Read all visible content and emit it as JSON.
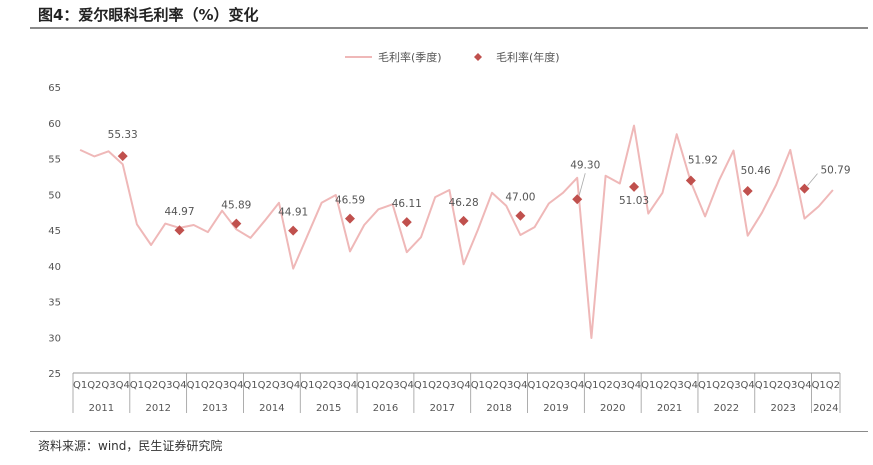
{
  "title": "图4：爱尔眼科毛利率（%）变化",
  "source": "资料来源：wind，民生证券研究院",
  "colors": {
    "line": "#efb8b8",
    "marker": "#c0504d",
    "axis": "#999999",
    "text": "#555555"
  },
  "chart_data": {
    "type": "line",
    "legend_position": "top-center",
    "grid": false,
    "ylim": [
      25,
      65
    ],
    "yticks": [
      25,
      30,
      35,
      40,
      45,
      50,
      55,
      60,
      65
    ],
    "quarters": [
      "Q1",
      "Q2",
      "Q3",
      "Q4",
      "Q1",
      "Q2",
      "Q3",
      "Q4",
      "Q1",
      "Q2",
      "Q3",
      "Q4",
      "Q1",
      "Q2",
      "Q3",
      "Q4",
      "Q1",
      "Q2",
      "Q3",
      "Q4",
      "Q1",
      "Q2",
      "Q3",
      "Q4",
      "Q1",
      "Q2",
      "Q3",
      "Q4",
      "Q1",
      "Q2",
      "Q3",
      "Q4",
      "Q1",
      "Q2",
      "Q3",
      "Q4",
      "Q1",
      "Q2",
      "Q3",
      "Q4",
      "Q1",
      "Q2",
      "Q3",
      "Q4",
      "Q1",
      "Q2",
      "Q3",
      "Q4",
      "Q1",
      "Q2",
      "Q3",
      "Q4",
      "Q1",
      "Q2"
    ],
    "years": [
      "2011",
      "2012",
      "2013",
      "2014",
      "2015",
      "2016",
      "2017",
      "2018",
      "2019",
      "2020",
      "2021",
      "2022",
      "2023",
      "2024"
    ],
    "series": [
      {
        "name": "毛利率(季度)",
        "values": [
          56.2,
          55.3,
          56.0,
          54.2,
          45.8,
          42.9,
          45.9,
          45.3,
          45.7,
          44.7,
          47.7,
          45.1,
          43.9,
          46.3,
          48.8,
          39.6,
          44.2,
          48.8,
          49.9,
          42.0,
          45.7,
          47.9,
          48.6,
          41.9,
          44.0,
          49.6,
          50.6,
          40.2,
          45.0,
          50.2,
          48.4,
          44.3,
          45.4,
          48.7,
          50.2,
          52.3,
          29.9,
          52.6,
          51.5,
          59.6,
          47.3,
          50.2,
          58.4,
          51.7,
          46.9,
          52.0,
          56.1,
          44.2,
          47.4,
          51.3,
          56.2,
          46.6,
          48.3,
          50.6
        ]
      },
      {
        "name": "毛利率(年度)",
        "points": [
          {
            "year": "2011",
            "value": 55.33,
            "label": "55.33"
          },
          {
            "year": "2012",
            "value": 44.97,
            "label": "44.97"
          },
          {
            "year": "2013",
            "value": 45.89,
            "label": "45.89"
          },
          {
            "year": "2014",
            "value": 44.91,
            "label": "44.91"
          },
          {
            "year": "2015",
            "value": 46.59,
            "label": "46.59"
          },
          {
            "year": "2016",
            "value": 46.11,
            "label": "46.11"
          },
          {
            "year": "2017",
            "value": 46.28,
            "label": "46.28"
          },
          {
            "year": "2018",
            "value": 47.0,
            "label": "47.00"
          },
          {
            "year": "2019",
            "value": 49.3,
            "label": "49.30"
          },
          {
            "year": "2020",
            "value": 51.03,
            "label": "51.03"
          },
          {
            "year": "2021",
            "value": 51.92,
            "label": "51.92"
          },
          {
            "year": "2022",
            "value": 50.46,
            "label": "50.46"
          },
          {
            "year": "2023",
            "value": 50.79,
            "label": "50.79"
          }
        ]
      }
    ]
  }
}
